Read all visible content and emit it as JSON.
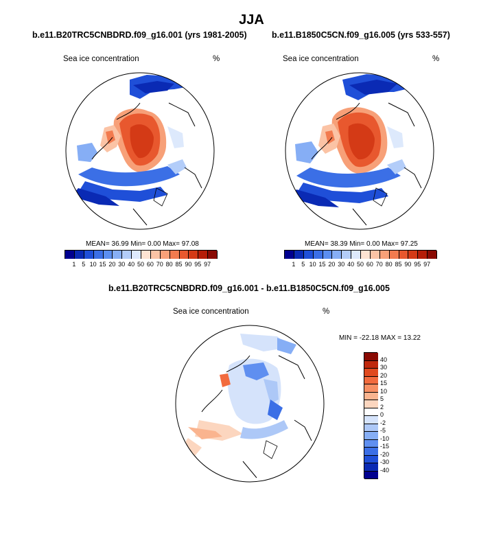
{
  "title": "JJA",
  "panel_left": {
    "case": "b.e11.B20TRC5CNBDRD.f09_g16.001 (yrs 1981-2005)",
    "variable": "Sea ice concentration",
    "units": "%",
    "stats": "MEAN=  36.99  Min=   0.00  Max=  97.08"
  },
  "panel_right": {
    "case": "b.e11.B1850C5CN.f09_g16.005 (yrs 533-557)",
    "variable": "Sea ice concentration",
    "units": "%",
    "stats": "MEAN=  38.39  Min=   0.00  Max=  97.25"
  },
  "panel_diff": {
    "case": "b.e11.B20TRC5CNBDRD.f09_g16.001 - b.e11.B1850C5CN.f09_g16.005",
    "variable": "Sea ice concentration",
    "units": "%",
    "stats": "MIN = -22.18 MAX =  13.22"
  },
  "colorbar_conc": {
    "levels": [
      "1",
      "5",
      "10",
      "15",
      "20",
      "30",
      "40",
      "50",
      "60",
      "70",
      "80",
      "85",
      "90",
      "95",
      "97"
    ],
    "colors": [
      "#00008f",
      "#0a2ab4",
      "#1f4fd8",
      "#3b6fe6",
      "#5b8ef0",
      "#86aef5",
      "#b3cdf9",
      "#dde9fc",
      "#fde3d3",
      "#fbc3a5",
      "#f7a078",
      "#f27b4f",
      "#e8582e",
      "#d43a16",
      "#b51d08",
      "#8a0a03"
    ]
  },
  "colorbar_diff": {
    "levels": [
      "40",
      "30",
      "20",
      "15",
      "10",
      "5",
      "2",
      "0",
      "-2",
      "-5",
      "-10",
      "-15",
      "-20",
      "-30",
      "-40"
    ],
    "colors": [
      "#8a0a03",
      "#c0280c",
      "#e04a1f",
      "#f26b3e",
      "#f78f63",
      "#fab48f",
      "#fcd6bf",
      "#ffffff",
      "#d5e3fb",
      "#adc8f7",
      "#86aef5",
      "#5f8ff0",
      "#3b6fe6",
      "#1f4fd8",
      "#0a2ab4",
      "#00008f"
    ]
  }
}
